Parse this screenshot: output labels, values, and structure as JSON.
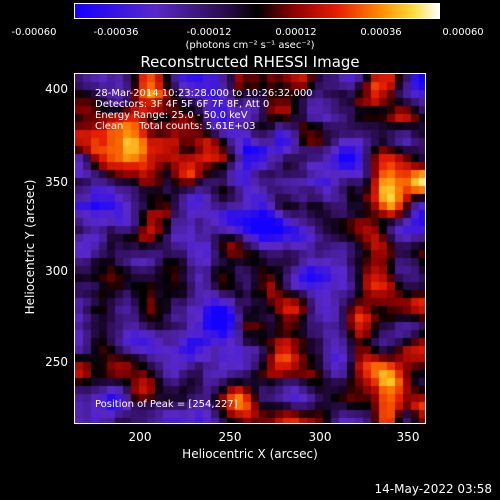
{
  "colorbar": {
    "ticks": [
      "-0.00060",
      "-0.00036",
      "-0.00012",
      "0.00012",
      "0.00036",
      "0.00060"
    ],
    "units_label": "(photons cm⁻² s⁻¹ asec⁻²)"
  },
  "plot": {
    "title": "Reconstructed RHESSI Image",
    "info_lines": [
      "28-Mar-2014 10:23:28.000 to 10:26:32.000",
      "Detectors: 3F 4F 5F 6F 7F 8F, Att 0",
      "Energy Range: 25.0 - 50.0 keV",
      "Clean     Total counts: 5.61E+03"
    ],
    "peak_label": "Position of Peak = [254,227]",
    "y_label": "Heliocentric Y (arcsec)",
    "x_label": "Heliocentric X (arcsec)",
    "y_ticks": [
      "400",
      "350",
      "300",
      "250"
    ],
    "x_ticks": [
      "200",
      "250",
      "300",
      "350"
    ]
  },
  "footer": {
    "date": "14-May-2022 03:58"
  }
}
